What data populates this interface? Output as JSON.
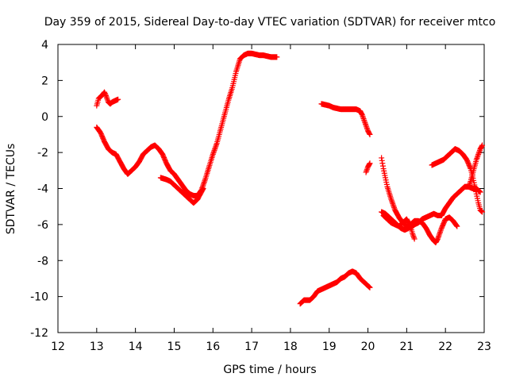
{
  "chart_data": {
    "type": "scatter",
    "title": "Day 359 of 2015, Sidereal Day-to-day VTEC variation (SDTVAR) for receiver mtco",
    "xlabel": "GPS time / hours",
    "ylabel": "SDTVAR / TECUs",
    "xlim": [
      12,
      23
    ],
    "ylim": [
      -12,
      4
    ],
    "xticks": [
      "12",
      "13",
      "14",
      "15",
      "16",
      "17",
      "18",
      "19",
      "20",
      "21",
      "22",
      "23"
    ],
    "yticks": [
      "4",
      "2",
      "0",
      "-2",
      "-4",
      "-6",
      "-8",
      "-10",
      "-12"
    ],
    "xtick_values": [
      12,
      13,
      14,
      15,
      16,
      17,
      18,
      19,
      20,
      21,
      22,
      23
    ],
    "ytick_values": [
      4,
      2,
      0,
      -2,
      -4,
      -6,
      -8,
      -10,
      -12
    ],
    "marker": "+",
    "marker_color": "#ff0000",
    "legend": "none",
    "series": [
      {
        "name": "arc-1",
        "points": [
          [
            13.0,
            0.6
          ],
          [
            13.05,
            1.0
          ],
          [
            13.1,
            1.1
          ],
          [
            13.15,
            1.2
          ],
          [
            13.2,
            1.35
          ],
          [
            13.25,
            1.1
          ],
          [
            13.3,
            0.8
          ],
          [
            13.35,
            0.7
          ],
          [
            13.4,
            0.8
          ],
          [
            13.45,
            0.85
          ],
          [
            13.5,
            0.9
          ],
          [
            13.55,
            0.95
          ]
        ]
      },
      {
        "name": "arc-2",
        "points": [
          [
            13.0,
            -0.6
          ],
          [
            13.1,
            -0.9
          ],
          [
            13.2,
            -1.4
          ],
          [
            13.3,
            -1.8
          ],
          [
            13.4,
            -2.0
          ],
          [
            13.5,
            -2.1
          ],
          [
            13.6,
            -2.5
          ],
          [
            13.7,
            -2.9
          ],
          [
            13.8,
            -3.2
          ],
          [
            13.9,
            -3.0
          ],
          [
            14.0,
            -2.8
          ],
          [
            14.1,
            -2.5
          ],
          [
            14.2,
            -2.1
          ],
          [
            14.3,
            -1.9
          ],
          [
            14.4,
            -1.7
          ],
          [
            14.5,
            -1.6
          ],
          [
            14.6,
            -1.8
          ],
          [
            14.7,
            -2.1
          ],
          [
            14.8,
            -2.6
          ],
          [
            14.9,
            -3.0
          ],
          [
            15.0,
            -3.2
          ],
          [
            15.1,
            -3.5
          ],
          [
            15.2,
            -3.8
          ],
          [
            15.3,
            -4.1
          ],
          [
            15.4,
            -4.3
          ],
          [
            15.5,
            -4.4
          ],
          [
            15.6,
            -4.4
          ],
          [
            15.7,
            -4.1
          ],
          [
            15.8,
            -3.5
          ],
          [
            15.9,
            -2.8
          ],
          [
            16.0,
            -2.1
          ],
          [
            16.1,
            -1.5
          ],
          [
            16.2,
            -0.7
          ],
          [
            16.3,
            0.1
          ],
          [
            16.4,
            0.9
          ],
          [
            16.5,
            1.6
          ],
          [
            16.6,
            2.5
          ],
          [
            16.7,
            3.2
          ],
          [
            16.8,
            3.4
          ],
          [
            16.9,
            3.5
          ],
          [
            17.0,
            3.5
          ],
          [
            17.1,
            3.45
          ],
          [
            17.2,
            3.4
          ],
          [
            17.3,
            3.4
          ],
          [
            17.4,
            3.35
          ],
          [
            17.5,
            3.3
          ],
          [
            17.6,
            3.3
          ],
          [
            17.65,
            3.3
          ]
        ]
      },
      {
        "name": "arc-3",
        "points": [
          [
            14.65,
            -3.4
          ],
          [
            14.8,
            -3.5
          ],
          [
            14.9,
            -3.6
          ],
          [
            15.0,
            -3.8
          ],
          [
            15.1,
            -4.0
          ],
          [
            15.2,
            -4.2
          ],
          [
            15.3,
            -4.4
          ],
          [
            15.4,
            -4.6
          ],
          [
            15.5,
            -4.8
          ],
          [
            15.6,
            -4.6
          ],
          [
            15.7,
            -4.2
          ],
          [
            15.75,
            -4.0
          ]
        ]
      },
      {
        "name": "arc-4",
        "points": [
          [
            18.25,
            -10.4
          ],
          [
            18.35,
            -10.2
          ],
          [
            18.5,
            -10.2
          ],
          [
            18.6,
            -10.0
          ],
          [
            18.7,
            -9.7
          ],
          [
            18.8,
            -9.6
          ],
          [
            18.9,
            -9.5
          ],
          [
            19.0,
            -9.4
          ],
          [
            19.1,
            -9.3
          ],
          [
            19.2,
            -9.2
          ],
          [
            19.3,
            -9.0
          ],
          [
            19.4,
            -8.9
          ],
          [
            19.5,
            -8.7
          ],
          [
            19.6,
            -8.6
          ],
          [
            19.7,
            -8.7
          ],
          [
            19.8,
            -9.0
          ],
          [
            19.9,
            -9.2
          ],
          [
            20.0,
            -9.4
          ],
          [
            20.05,
            -9.5
          ]
        ]
      },
      {
        "name": "arc-5",
        "points": [
          [
            18.8,
            0.7
          ],
          [
            18.9,
            0.65
          ],
          [
            19.0,
            0.6
          ],
          [
            19.1,
            0.5
          ],
          [
            19.2,
            0.45
          ],
          [
            19.3,
            0.4
          ],
          [
            19.4,
            0.4
          ],
          [
            19.5,
            0.4
          ],
          [
            19.6,
            0.4
          ],
          [
            19.7,
            0.4
          ],
          [
            19.8,
            0.3
          ],
          [
            19.85,
            0.1
          ],
          [
            19.9,
            -0.2
          ],
          [
            19.95,
            -0.5
          ],
          [
            20.0,
            -0.8
          ],
          [
            20.05,
            -1.0
          ]
        ]
      },
      {
        "name": "arc-6",
        "points": [
          [
            19.95,
            -3.1
          ],
          [
            20.0,
            -2.8
          ],
          [
            20.05,
            -2.6
          ]
        ]
      },
      {
        "name": "arc-7",
        "points": [
          [
            20.35,
            -2.3
          ],
          [
            20.4,
            -2.9
          ],
          [
            20.45,
            -3.4
          ],
          [
            20.5,
            -3.9
          ],
          [
            20.6,
            -4.6
          ],
          [
            20.7,
            -5.2
          ],
          [
            20.8,
            -5.6
          ],
          [
            20.9,
            -5.9
          ],
          [
            21.0,
            -6.1
          ],
          [
            21.1,
            -6.2
          ],
          [
            21.2,
            -6.0
          ],
          [
            21.3,
            -5.9
          ],
          [
            21.4,
            -5.7
          ],
          [
            21.5,
            -5.6
          ],
          [
            21.6,
            -5.5
          ],
          [
            21.7,
            -5.4
          ],
          [
            21.8,
            -5.5
          ],
          [
            21.9,
            -5.5
          ],
          [
            22.0,
            -5.1
          ],
          [
            22.1,
            -4.8
          ],
          [
            22.2,
            -4.5
          ],
          [
            22.3,
            -4.3
          ],
          [
            22.4,
            -4.1
          ],
          [
            22.5,
            -3.9
          ],
          [
            22.6,
            -3.9
          ],
          [
            22.7,
            -4.0
          ],
          [
            22.8,
            -4.0
          ],
          [
            22.9,
            -4.2
          ]
        ]
      },
      {
        "name": "arc-8",
        "points": [
          [
            20.35,
            -5.3
          ],
          [
            20.45,
            -5.4
          ],
          [
            20.55,
            -5.6
          ],
          [
            20.65,
            -5.8
          ],
          [
            20.75,
            -6.0
          ],
          [
            20.85,
            -6.2
          ],
          [
            20.95,
            -6.3
          ],
          [
            21.05,
            -6.2
          ],
          [
            21.1,
            -6.0
          ],
          [
            21.2,
            -5.8
          ],
          [
            21.3,
            -5.8
          ],
          [
            21.4,
            -5.9
          ],
          [
            21.5,
            -6.2
          ],
          [
            21.6,
            -6.6
          ],
          [
            21.7,
            -6.9
          ],
          [
            21.75,
            -7.0
          ],
          [
            21.8,
            -6.8
          ],
          [
            21.9,
            -6.2
          ],
          [
            22.0,
            -5.7
          ],
          [
            22.1,
            -5.6
          ],
          [
            22.2,
            -5.8
          ],
          [
            22.3,
            -6.1
          ]
        ]
      },
      {
        "name": "arc-9",
        "points": [
          [
            20.4,
            -5.5
          ],
          [
            20.5,
            -5.7
          ],
          [
            20.6,
            -5.9
          ],
          [
            20.7,
            -6.0
          ],
          [
            20.8,
            -6.1
          ],
          [
            20.9,
            -5.9
          ],
          [
            21.0,
            -5.7
          ],
          [
            21.1,
            -6.1
          ],
          [
            21.15,
            -6.5
          ],
          [
            21.2,
            -6.8
          ]
        ]
      },
      {
        "name": "arc-10",
        "points": [
          [
            21.65,
            -2.7
          ],
          [
            21.75,
            -2.6
          ],
          [
            21.85,
            -2.5
          ],
          [
            21.95,
            -2.4
          ],
          [
            22.05,
            -2.2
          ],
          [
            22.15,
            -2.0
          ],
          [
            22.25,
            -1.8
          ],
          [
            22.35,
            -1.9
          ],
          [
            22.45,
            -2.1
          ],
          [
            22.55,
            -2.4
          ],
          [
            22.65,
            -2.9
          ],
          [
            22.7,
            -3.3
          ],
          [
            22.75,
            -3.8
          ],
          [
            22.8,
            -4.3
          ],
          [
            22.85,
            -4.8
          ],
          [
            22.9,
            -5.2
          ],
          [
            22.95,
            -5.3
          ]
        ]
      },
      {
        "name": "arc-11",
        "points": [
          [
            22.6,
            -3.9
          ],
          [
            22.65,
            -3.6
          ],
          [
            22.7,
            -3.2
          ],
          [
            22.75,
            -2.8
          ],
          [
            22.8,
            -2.4
          ],
          [
            22.85,
            -2.1
          ],
          [
            22.9,
            -1.8
          ],
          [
            22.95,
            -1.6
          ]
        ]
      }
    ]
  }
}
